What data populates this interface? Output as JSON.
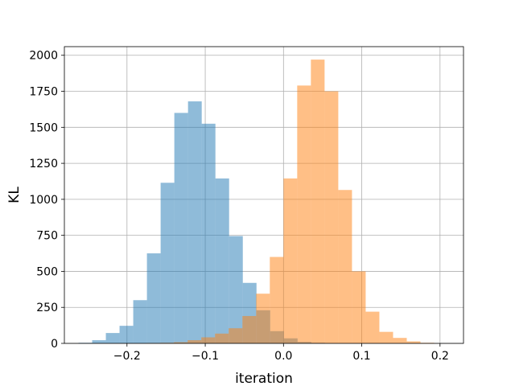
{
  "chart_data": {
    "type": "bar",
    "xlabel": "iteration",
    "ylabel": "KL",
    "xlim": [
      -0.28,
      0.23
    ],
    "ylim": [
      0,
      2060
    ],
    "grid": true,
    "x_ticks": [
      -0.2,
      -0.1,
      0.0,
      0.1,
      0.2
    ],
    "x_tick_labels": [
      "−0.2",
      "−0.1",
      "0.0",
      "0.1",
      "0.2"
    ],
    "y_ticks": [
      0,
      250,
      500,
      750,
      1000,
      1250,
      1500,
      1750,
      2000
    ],
    "y_tick_labels": [
      "0",
      "250",
      "500",
      "750",
      "1000",
      "1250",
      "1500",
      "1750",
      "2000"
    ],
    "series": [
      {
        "color": "#1f77b4",
        "opacity": 0.5,
        "bins": [
          {
            "x0": -0.262,
            "x1": -0.2445,
            "count": 4
          },
          {
            "x0": -0.2445,
            "x1": -0.227,
            "count": 22
          },
          {
            "x0": -0.227,
            "x1": -0.2095,
            "count": 72
          },
          {
            "x0": -0.2095,
            "x1": -0.192,
            "count": 122
          },
          {
            "x0": -0.192,
            "x1": -0.1745,
            "count": 300
          },
          {
            "x0": -0.1745,
            "x1": -0.157,
            "count": 625
          },
          {
            "x0": -0.157,
            "x1": -0.1395,
            "count": 1115
          },
          {
            "x0": -0.1395,
            "x1": -0.122,
            "count": 1600
          },
          {
            "x0": -0.122,
            "x1": -0.1045,
            "count": 1680
          },
          {
            "x0": -0.1045,
            "x1": -0.087,
            "count": 1525
          },
          {
            "x0": -0.087,
            "x1": -0.0695,
            "count": 1145
          },
          {
            "x0": -0.0695,
            "x1": -0.052,
            "count": 745
          },
          {
            "x0": -0.052,
            "x1": -0.0345,
            "count": 420
          },
          {
            "x0": -0.0345,
            "x1": -0.017,
            "count": 230
          },
          {
            "x0": -0.017,
            "x1": 0.0005,
            "count": 85
          },
          {
            "x0": 0.0005,
            "x1": 0.018,
            "count": 35
          },
          {
            "x0": 0.018,
            "x1": 0.0355,
            "count": 10
          },
          {
            "x0": 0.0355,
            "x1": 0.053,
            "count": 4
          }
        ]
      },
      {
        "color": "#ff7f0e",
        "opacity": 0.5,
        "bins": [
          {
            "x0": -0.175,
            "x1": -0.1575,
            "count": 2
          },
          {
            "x0": -0.1575,
            "x1": -0.14,
            "count": 4
          },
          {
            "x0": -0.14,
            "x1": -0.1225,
            "count": 8
          },
          {
            "x0": -0.1225,
            "x1": -0.105,
            "count": 22
          },
          {
            "x0": -0.105,
            "x1": -0.0875,
            "count": 42
          },
          {
            "x0": -0.0875,
            "x1": -0.07,
            "count": 68
          },
          {
            "x0": -0.07,
            "x1": -0.0525,
            "count": 105
          },
          {
            "x0": -0.0525,
            "x1": -0.035,
            "count": 190
          },
          {
            "x0": -0.035,
            "x1": -0.0175,
            "count": 345
          },
          {
            "x0": -0.0175,
            "x1": 0.0,
            "count": 600
          },
          {
            "x0": 0.0,
            "x1": 0.0175,
            "count": 1145
          },
          {
            "x0": 0.0175,
            "x1": 0.035,
            "count": 1790
          },
          {
            "x0": 0.035,
            "x1": 0.0525,
            "count": 1970
          },
          {
            "x0": 0.0525,
            "x1": 0.07,
            "count": 1750
          },
          {
            "x0": 0.07,
            "x1": 0.0875,
            "count": 1065
          },
          {
            "x0": 0.0875,
            "x1": 0.105,
            "count": 500
          },
          {
            "x0": 0.105,
            "x1": 0.1225,
            "count": 220
          },
          {
            "x0": 0.1225,
            "x1": 0.14,
            "count": 80
          },
          {
            "x0": 0.14,
            "x1": 0.1575,
            "count": 38
          },
          {
            "x0": 0.1575,
            "x1": 0.175,
            "count": 14
          },
          {
            "x0": 0.175,
            "x1": 0.1925,
            "count": 4
          }
        ]
      }
    ]
  }
}
